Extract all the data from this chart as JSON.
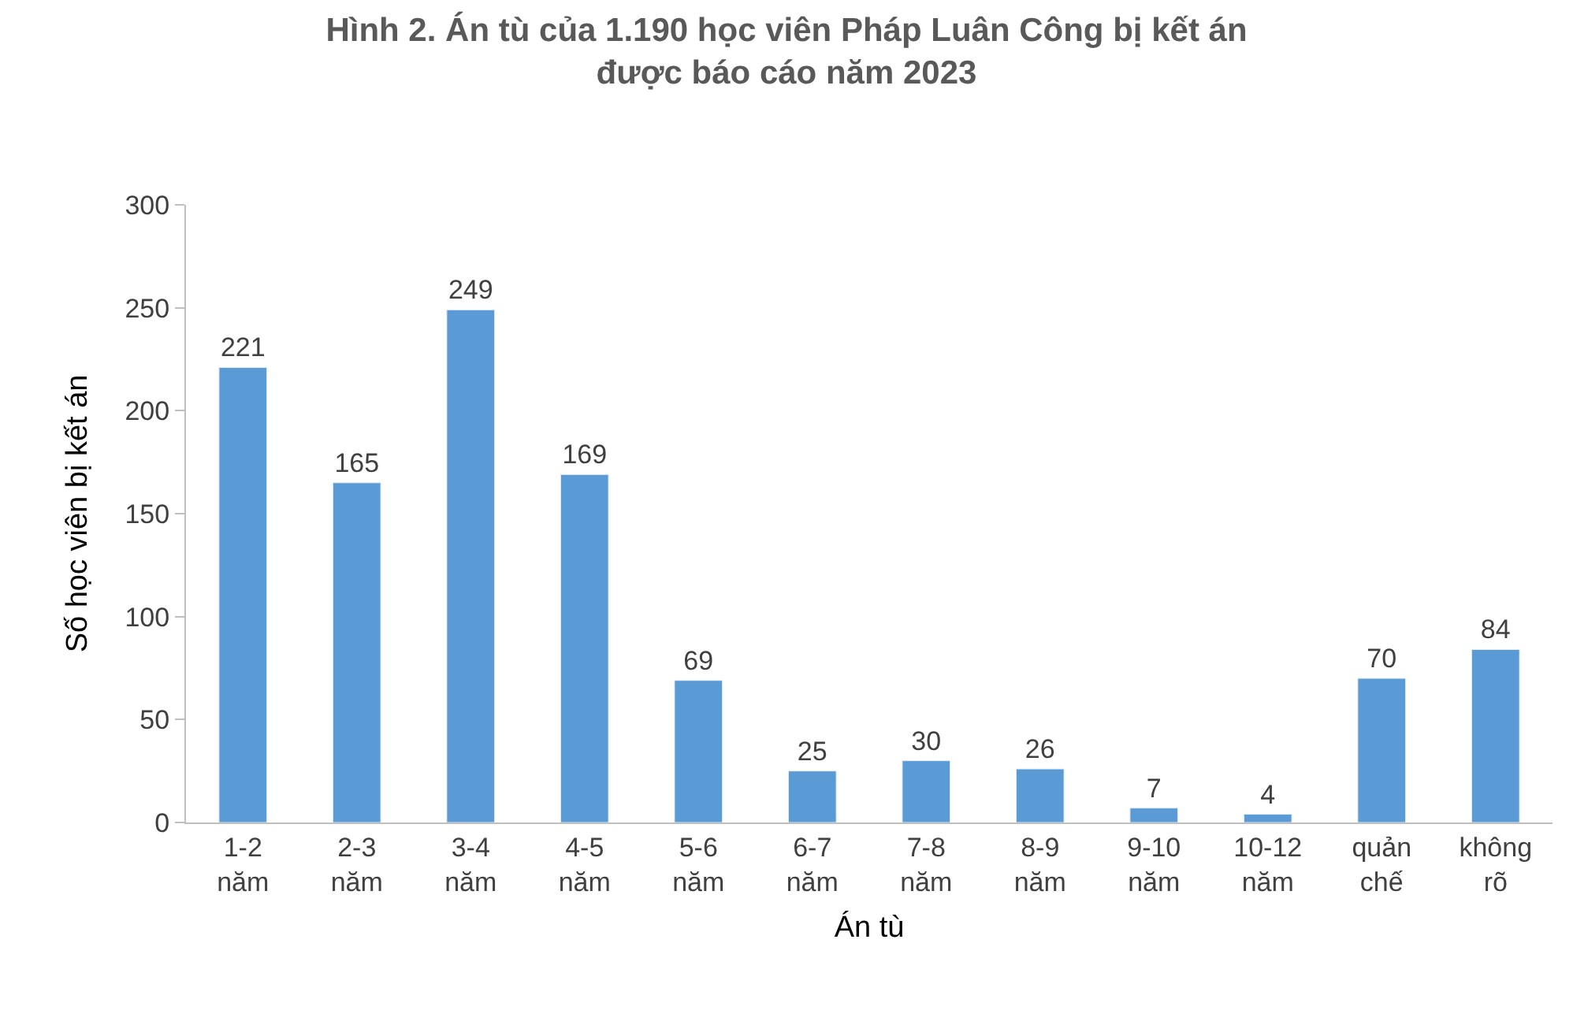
{
  "chart_data": {
    "type": "bar",
    "title": "Hình 2. Án tù của 1.190 học viên Pháp Luân Công bị kết án\nđược báo cáo năm 2023",
    "xlabel": "Án tù",
    "ylabel": "Số học viên bị kết án",
    "categories": [
      "1-2\nnăm",
      "2-3\nnăm",
      "3-4\nnăm",
      "4-5\nnăm",
      "5-6\nnăm",
      "6-7\nnăm",
      "7-8\nnăm",
      "8-9\nnăm",
      "9-10\nnăm",
      "10-12\nnăm",
      "quản\nchế",
      "không\nrõ"
    ],
    "values": [
      221,
      165,
      249,
      169,
      69,
      25,
      30,
      26,
      7,
      4,
      70,
      84
    ],
    "color": "#5b9bd5",
    "ylim": [
      0,
      300
    ],
    "yticks": [
      0,
      50,
      100,
      150,
      200,
      250,
      300
    ],
    "grid": false,
    "data_labels": true
  }
}
